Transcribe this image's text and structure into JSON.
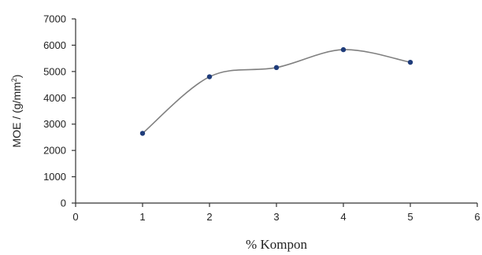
{
  "chart_data": {
    "type": "scatter",
    "title": "",
    "xlabel": "% Kompon",
    "ylabel_main": "MOE  / (g/mm",
    "ylabel_sup": "2",
    "ylabel_end": ")",
    "xlim": [
      0,
      6
    ],
    "ylim": [
      0,
      7000
    ],
    "xticks": [
      0,
      1,
      2,
      3,
      4,
      5,
      6
    ],
    "yticks": [
      0,
      1000,
      2000,
      3000,
      4000,
      5000,
      6000,
      7000
    ],
    "grid": false,
    "legend": "none",
    "series": [
      {
        "x": [
          1,
          2,
          3,
          4,
          5
        ],
        "y": [
          2650,
          4800,
          5150,
          5830,
          5350
        ],
        "marker_color": "#1f3c7a",
        "trend_color": "#808080",
        "trend": "smooth"
      }
    ]
  }
}
